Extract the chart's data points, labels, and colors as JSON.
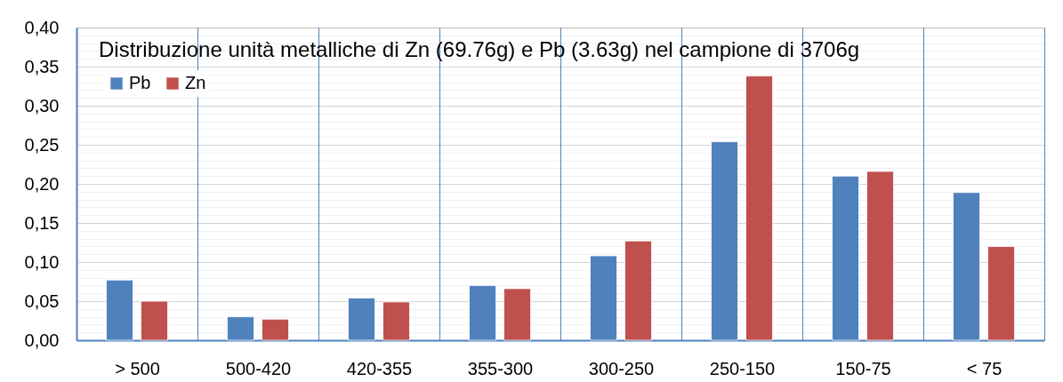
{
  "chart_data": {
    "type": "bar",
    "title": "Distribuzione unità metalliche di Zn (69.76g) e Pb (3.63g) nel campione di 3706g",
    "categories": [
      "> 500",
      "500-420",
      "420-355",
      "355-300",
      "300-250",
      "250-150",
      "150-75",
      "< 75"
    ],
    "series": [
      {
        "name": "Pb",
        "color": "#4f81bd",
        "values": [
          0.077,
          0.03,
          0.054,
          0.07,
          0.108,
          0.254,
          0.21,
          0.189
        ]
      },
      {
        "name": "Zn",
        "color": "#c0504d",
        "values": [
          0.05,
          0.027,
          0.049,
          0.066,
          0.127,
          0.338,
          0.216,
          0.12
        ]
      }
    ],
    "ylim": [
      0,
      0.4
    ],
    "yticks": [
      {
        "value": 0,
        "label": "0,00"
      },
      {
        "value": 0.01,
        "label": null
      },
      {
        "value": 0.02,
        "label": null
      },
      {
        "value": 0.03,
        "label": null
      },
      {
        "value": 0.04,
        "label": null
      },
      {
        "value": 0.05,
        "label": "0,05"
      },
      {
        "value": 0.06,
        "label": null
      },
      {
        "value": 0.07,
        "label": null
      },
      {
        "value": 0.08,
        "label": null
      },
      {
        "value": 0.09,
        "label": null
      },
      {
        "value": 0.1,
        "label": "0,10"
      },
      {
        "value": 0.11,
        "label": null
      },
      {
        "value": 0.12,
        "label": null
      },
      {
        "value": 0.13,
        "label": null
      },
      {
        "value": 0.14,
        "label": null
      },
      {
        "value": 0.15,
        "label": "0,15"
      },
      {
        "value": 0.16,
        "label": null
      },
      {
        "value": 0.17,
        "label": null
      },
      {
        "value": 0.18,
        "label": null
      },
      {
        "value": 0.19,
        "label": null
      },
      {
        "value": 0.2,
        "label": "0,20"
      },
      {
        "value": 0.21,
        "label": null
      },
      {
        "value": 0.22,
        "label": null
      },
      {
        "value": 0.23,
        "label": null
      },
      {
        "value": 0.24,
        "label": null
      },
      {
        "value": 0.25,
        "label": "0,25"
      },
      {
        "value": 0.26,
        "label": null
      },
      {
        "value": 0.27,
        "label": null
      },
      {
        "value": 0.28,
        "label": null
      },
      {
        "value": 0.29,
        "label": null
      },
      {
        "value": 0.3,
        "label": "0,30"
      },
      {
        "value": 0.31,
        "label": null
      },
      {
        "value": 0.32,
        "label": null
      },
      {
        "value": 0.33,
        "label": null
      },
      {
        "value": 0.34,
        "label": null
      },
      {
        "value": 0.35,
        "label": "0,35"
      },
      {
        "value": 0.36,
        "label": null
      },
      {
        "value": 0.37,
        "label": null
      },
      {
        "value": 0.38,
        "label": null
      },
      {
        "value": 0.39,
        "label": null
      },
      {
        "value": 0.4,
        "label": "0,40"
      }
    ],
    "grid": true,
    "legend": "top left"
  }
}
